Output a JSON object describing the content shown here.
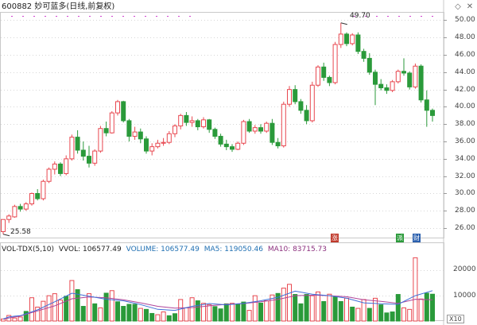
{
  "header": {
    "title": "600882 妙可蓝多(日线,前复权)",
    "collapse_icon": "chevron-down-icon",
    "settings_icon": "diamond-settings-icon",
    "close_icon": "close-icon"
  },
  "price_panel": {
    "y_ticks": [
      "50.00",
      "48.00",
      "46.00",
      "44.00",
      "42.00",
      "40.00",
      "38.00",
      "36.00",
      "34.00",
      "32.00",
      "30.00",
      "28.00",
      "26.00"
    ],
    "high_label": "49.70",
    "low_label": "25.58",
    "event_tags": [
      "涨",
      "派",
      "财"
    ]
  },
  "volume_panel": {
    "legend_name": "VOL-TDX(5,10)",
    "legend_vvol": "VVOL: 106577.49",
    "legend_volume": "VOLUME: 106577.49",
    "legend_ma5": "MA5: 119050.46",
    "legend_ma10": "MA10: 83715.73",
    "y_ticks": [
      "20000",
      "10000"
    ],
    "unit": "X10"
  },
  "colors": {
    "up": "#e8474f",
    "down": "#2a9a3a",
    "ma5": "#3f6ed8",
    "ma10": "#b0459a",
    "legend_volume": "#1f6fb2",
    "legend_ma5": "#1f6fb2",
    "legend_ma10": "#8b2f7d",
    "grid": "#d7d7d7",
    "axis_text": "#444444"
  },
  "chart_data": {
    "type": "candlestick",
    "ohlc_ylim": [
      25,
      50.5
    ],
    "volume_ylim": [
      0,
      27000
    ],
    "candles": [
      [
        25.6,
        27.0,
        25.3,
        27.0
      ],
      [
        27.0,
        27.6,
        26.6,
        27.4
      ],
      [
        27.3,
        28.7,
        27.2,
        28.5
      ],
      [
        28.5,
        28.8,
        27.9,
        28.2
      ],
      [
        28.2,
        29.0,
        28.0,
        28.8
      ],
      [
        28.8,
        30.1,
        28.6,
        30.0
      ],
      [
        30.0,
        30.5,
        29.2,
        29.4
      ],
      [
        29.4,
        31.6,
        29.2,
        31.4
      ],
      [
        31.4,
        33.0,
        31.2,
        32.8
      ],
      [
        32.8,
        33.7,
        32.2,
        33.4
      ],
      [
        33.4,
        33.6,
        32.0,
        32.3
      ],
      [
        32.3,
        34.4,
        32.1,
        34.0
      ],
      [
        34.0,
        36.8,
        33.8,
        36.5
      ],
      [
        36.5,
        37.3,
        34.6,
        35.0
      ],
      [
        35.0,
        36.0,
        33.8,
        34.3
      ],
      [
        34.3,
        35.5,
        33.0,
        33.5
      ],
      [
        33.5,
        35.1,
        33.2,
        34.9
      ],
      [
        34.9,
        37.8,
        34.7,
        37.5
      ],
      [
        37.5,
        38.3,
        36.6,
        37.0
      ],
      [
        37.0,
        39.5,
        36.9,
        39.3
      ],
      [
        39.3,
        40.8,
        39.0,
        40.6
      ],
      [
        40.6,
        40.7,
        38.2,
        38.4
      ],
      [
        38.4,
        38.6,
        36.0,
        36.6
      ],
      [
        36.6,
        37.7,
        36.2,
        37.1
      ],
      [
        37.1,
        37.5,
        35.8,
        36.3
      ],
      [
        36.3,
        36.6,
        34.6,
        34.9
      ],
      [
        34.9,
        35.8,
        34.4,
        35.4
      ],
      [
        35.4,
        36.2,
        35.2,
        35.8
      ],
      [
        35.8,
        36.4,
        35.5,
        35.9
      ],
      [
        35.9,
        37.2,
        35.7,
        36.9
      ],
      [
        36.9,
        38.0,
        36.5,
        37.8
      ],
      [
        37.8,
        39.2,
        37.4,
        39.0
      ],
      [
        39.0,
        39.4,
        37.8,
        38.2
      ],
      [
        38.2,
        38.9,
        37.7,
        38.4
      ],
      [
        38.4,
        38.6,
        37.3,
        37.7
      ],
      [
        37.7,
        38.8,
        37.5,
        38.5
      ],
      [
        38.5,
        38.6,
        37.0,
        37.4
      ],
      [
        37.4,
        37.6,
        36.3,
        36.6
      ],
      [
        36.6,
        36.9,
        35.4,
        35.7
      ],
      [
        35.7,
        36.2,
        35.0,
        35.4
      ],
      [
        35.4,
        35.7,
        34.8,
        35.1
      ],
      [
        35.1,
        36.0,
        35.0,
        35.8
      ],
      [
        35.8,
        38.5,
        35.6,
        38.3
      ],
      [
        38.3,
        38.6,
        37.0,
        37.2
      ],
      [
        37.2,
        37.9,
        36.9,
        37.6
      ],
      [
        37.6,
        38.0,
        36.9,
        37.2
      ],
      [
        37.2,
        38.3,
        37.0,
        38.1
      ],
      [
        38.1,
        38.6,
        35.6,
        35.9
      ],
      [
        35.9,
        36.4,
        35.2,
        35.5
      ],
      [
        35.5,
        40.6,
        35.3,
        40.3
      ],
      [
        40.3,
        42.4,
        40.0,
        42.0
      ],
      [
        42.0,
        42.5,
        40.3,
        40.6
      ],
      [
        40.6,
        40.9,
        39.2,
        39.6
      ],
      [
        39.6,
        40.2,
        38.0,
        38.4
      ],
      [
        38.4,
        42.9,
        38.2,
        42.5
      ],
      [
        42.5,
        44.8,
        42.3,
        44.6
      ],
      [
        44.6,
        45.1,
        43.0,
        43.4
      ],
      [
        43.4,
        43.6,
        42.4,
        42.8
      ],
      [
        42.8,
        47.5,
        42.6,
        47.2
      ],
      [
        47.2,
        49.7,
        46.8,
        48.4
      ],
      [
        48.4,
        48.6,
        47.0,
        47.3
      ],
      [
        47.3,
        48.5,
        47.1,
        48.3
      ],
      [
        48.3,
        48.6,
        46.1,
        46.4
      ],
      [
        46.4,
        46.7,
        45.2,
        45.6
      ],
      [
        45.6,
        46.2,
        43.7,
        44.0
      ],
      [
        44.0,
        44.3,
        40.2,
        42.6
      ],
      [
        42.6,
        43.2,
        41.9,
        42.2
      ],
      [
        42.2,
        42.6,
        41.5,
        41.9
      ],
      [
        41.9,
        43.1,
        41.7,
        42.9
      ],
      [
        42.9,
        44.3,
        42.7,
        44.1
      ],
      [
        44.1,
        45.6,
        43.6,
        43.9
      ],
      [
        43.9,
        44.1,
        42.0,
        42.3
      ],
      [
        42.3,
        45.0,
        42.1,
        44.7
      ],
      [
        44.7,
        44.9,
        40.5,
        40.8
      ],
      [
        40.8,
        41.9,
        37.7,
        39.6
      ],
      [
        39.6,
        39.8,
        38.3,
        39.0
      ]
    ],
    "volumes": [
      [
        800,
        1
      ],
      [
        2200,
        1
      ],
      [
        1200,
        1
      ],
      [
        1600,
        1
      ],
      [
        3800,
        0
      ],
      [
        9200,
        1
      ],
      [
        5500,
        1
      ],
      [
        7800,
        1
      ],
      [
        10000,
        1
      ],
      [
        10800,
        1
      ],
      [
        8300,
        1
      ],
      [
        9800,
        0
      ],
      [
        16000,
        1
      ],
      [
        12400,
        0
      ],
      [
        5800,
        0
      ],
      [
        10800,
        1
      ],
      [
        6800,
        0
      ],
      [
        5200,
        1
      ],
      [
        11000,
        0
      ],
      [
        12000,
        1
      ],
      [
        7600,
        0
      ],
      [
        5800,
        0
      ],
      [
        6600,
        0
      ],
      [
        6600,
        0
      ],
      [
        5000,
        1
      ],
      [
        4600,
        0
      ],
      [
        3000,
        0
      ],
      [
        2500,
        1
      ],
      [
        3600,
        1
      ],
      [
        2100,
        0
      ],
      [
        2900,
        0
      ],
      [
        8500,
        1
      ],
      [
        5200,
        1
      ],
      [
        9200,
        1
      ],
      [
        8000,
        0
      ],
      [
        7000,
        1
      ],
      [
        6400,
        1
      ],
      [
        5700,
        0
      ],
      [
        4800,
        0
      ],
      [
        6800,
        0
      ],
      [
        7000,
        1
      ],
      [
        6600,
        0
      ],
      [
        7500,
        0
      ],
      [
        4200,
        1
      ],
      [
        10000,
        1
      ],
      [
        7100,
        0
      ],
      [
        8000,
        1
      ],
      [
        10300,
        1
      ],
      [
        10900,
        0
      ],
      [
        13000,
        1
      ],
      [
        14500,
        1
      ],
      [
        10500,
        0
      ],
      [
        6800,
        0
      ],
      [
        10500,
        0
      ],
      [
        10000,
        1
      ],
      [
        11500,
        1
      ],
      [
        7700,
        0
      ],
      [
        10600,
        1
      ],
      [
        9500,
        0
      ],
      [
        7700,
        0
      ],
      [
        9000,
        1
      ],
      [
        5500,
        0
      ],
      [
        5000,
        1
      ],
      [
        8500,
        1
      ],
      [
        5000,
        0
      ],
      [
        9000,
        1
      ],
      [
        6400,
        0
      ],
      [
        3200,
        0
      ],
      [
        3600,
        0
      ],
      [
        10500,
        0
      ],
      [
        5200,
        1
      ],
      [
        4600,
        1
      ],
      [
        25000,
        1
      ],
      [
        8700,
        1
      ],
      [
        11000,
        0
      ],
      [
        10600,
        0
      ]
    ],
    "ma5": [
      [
        0,
        800
      ],
      [
        1,
        1600
      ],
      [
        2,
        1900
      ],
      [
        3,
        2100
      ],
      [
        6,
        4400
      ],
      [
        9,
        7600
      ],
      [
        12,
        11000
      ],
      [
        15,
        9800
      ],
      [
        18,
        8600
      ],
      [
        21,
        8000
      ],
      [
        24,
        6500
      ],
      [
        27,
        4600
      ],
      [
        30,
        4200
      ],
      [
        33,
        5800
      ],
      [
        36,
        6900
      ],
      [
        39,
        6400
      ],
      [
        42,
        7000
      ],
      [
        45,
        8000
      ],
      [
        48,
        9400
      ],
      [
        51,
        11800
      ],
      [
        54,
        10600
      ],
      [
        57,
        10000
      ],
      [
        60,
        9000
      ],
      [
        63,
        7200
      ],
      [
        66,
        6800
      ],
      [
        69,
        6600
      ],
      [
        72,
        10000
      ],
      [
        75,
        12000
      ]
    ],
    "ma10": [
      [
        0,
        800
      ],
      [
        3,
        2000
      ],
      [
        6,
        4000
      ],
      [
        9,
        6000
      ],
      [
        12,
        8800
      ],
      [
        15,
        9500
      ],
      [
        18,
        9200
      ],
      [
        21,
        8400
      ],
      [
        24,
        7200
      ],
      [
        27,
        5800
      ],
      [
        30,
        5100
      ],
      [
        33,
        5300
      ],
      [
        36,
        6000
      ],
      [
        39,
        6600
      ],
      [
        42,
        6900
      ],
      [
        45,
        7600
      ],
      [
        48,
        8500
      ],
      [
        51,
        10000
      ],
      [
        54,
        10200
      ],
      [
        57,
        10000
      ],
      [
        60,
        9600
      ],
      [
        63,
        8400
      ],
      [
        66,
        7800
      ],
      [
        69,
        7000
      ],
      [
        72,
        8600
      ],
      [
        75,
        8400
      ]
    ]
  }
}
